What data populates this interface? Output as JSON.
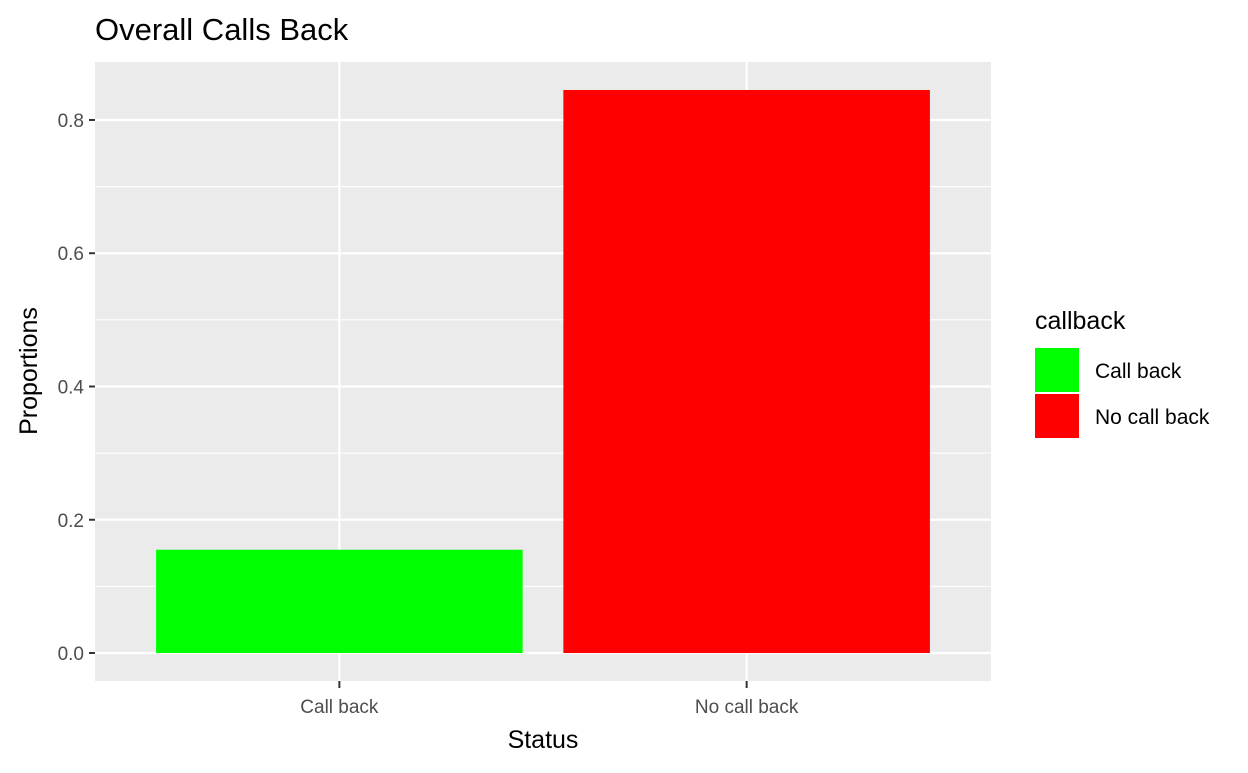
{
  "chart_data": {
    "type": "bar",
    "title": "Overall Calls Back",
    "xlabel": "Status",
    "ylabel": "Proportions",
    "categories": [
      "Call back",
      "No call back"
    ],
    "values": [
      0.155,
      0.845
    ],
    "colors": [
      "#00FF00",
      "#FF0000"
    ],
    "ylim": [
      -0.042,
      0.887
    ],
    "yticks": [
      0.0,
      0.2,
      0.4,
      0.6,
      0.8
    ],
    "ytick_labels": [
      "0.0",
      "0.2",
      "0.4",
      "0.6",
      "0.8"
    ],
    "grid": true,
    "legend": {
      "title": "callback",
      "placement": "right",
      "entries": [
        {
          "label": "Call back",
          "color": "#00FF00"
        },
        {
          "label": "No call back",
          "color": "#FF0000"
        }
      ]
    },
    "panel_background": "#EBEBEB",
    "grid_color": "#FFFFFF"
  }
}
